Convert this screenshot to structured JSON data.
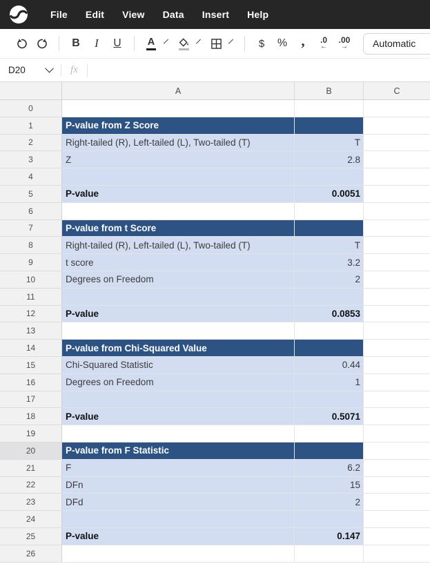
{
  "menu_bar": {
    "items": [
      "File",
      "Edit",
      "View",
      "Data",
      "Insert",
      "Help"
    ]
  },
  "toolbar": {
    "bold": "B",
    "italic": "I",
    "underline": "U",
    "text_color": "A",
    "currency": "$",
    "percent": "%",
    "comma": ",",
    "decrease_decimal": ".0",
    "decrease_arrow": "←",
    "increase_decimal": ".00",
    "increase_arrow": "→",
    "format_selector": "Automatic"
  },
  "formula_bar": {
    "cell_reference": "D20",
    "fx_label": "fx",
    "formula_value": ""
  },
  "colors": {
    "menu_bg": "#262626",
    "section_header_bg": "#2d5384",
    "section_bg": "#d3ddf1",
    "selected_row_header_bg": "#e1e1e4"
  },
  "grid": {
    "column_headers": [
      "A",
      "B",
      "C"
    ],
    "rows": [
      {
        "n": "0",
        "a": "",
        "b": "",
        "style": "plain"
      },
      {
        "n": "1",
        "a": "P-value from Z Score",
        "b": "",
        "style": "header"
      },
      {
        "n": "2",
        "a": "Right-tailed (R), Left-tailed (L), Two-tailed (T)",
        "b": "T",
        "style": "section"
      },
      {
        "n": "3",
        "a": "Z",
        "b": "2.8",
        "style": "section"
      },
      {
        "n": "4",
        "a": "",
        "b": "",
        "style": "section"
      },
      {
        "n": "5",
        "a": "P-value",
        "b": "0.0051",
        "style": "result"
      },
      {
        "n": "6",
        "a": "",
        "b": "",
        "style": "plain"
      },
      {
        "n": "7",
        "a": "P-value from t Score",
        "b": "",
        "style": "header"
      },
      {
        "n": "8",
        "a": "Right-tailed (R), Left-tailed (L), Two-tailed (T)",
        "b": "T",
        "style": "section"
      },
      {
        "n": "9",
        "a": "t score",
        "b": "3.2",
        "style": "section"
      },
      {
        "n": "10",
        "a": "Degrees on Freedom",
        "b": "2",
        "style": "section"
      },
      {
        "n": "11",
        "a": "",
        "b": "",
        "style": "section"
      },
      {
        "n": "12",
        "a": "P-value",
        "b": "0.0853",
        "style": "result"
      },
      {
        "n": "13",
        "a": "",
        "b": "",
        "style": "plain"
      },
      {
        "n": "14",
        "a": "P-value from Chi-Squared Value",
        "b": "",
        "style": "header"
      },
      {
        "n": "15",
        "a": "Chi-Squared Statistic",
        "b": "0.44",
        "style": "section"
      },
      {
        "n": "16",
        "a": "Degrees on Freedom",
        "b": "1",
        "style": "section"
      },
      {
        "n": "17",
        "a": "",
        "b": "",
        "style": "section"
      },
      {
        "n": "18",
        "a": "P-value",
        "b": "0.5071",
        "style": "result"
      },
      {
        "n": "19",
        "a": "",
        "b": "",
        "style": "plain"
      },
      {
        "n": "20",
        "a": "P-value from F Statistic",
        "b": "",
        "style": "header",
        "selected": true
      },
      {
        "n": "21",
        "a": "F",
        "b": "6.2",
        "style": "section"
      },
      {
        "n": "22",
        "a": "DFn",
        "b": "15",
        "style": "section"
      },
      {
        "n": "23",
        "a": "DFd",
        "b": "2",
        "style": "section"
      },
      {
        "n": "24",
        "a": "",
        "b": "",
        "style": "section"
      },
      {
        "n": "25",
        "a": "P-value",
        "b": "0.147",
        "style": "result"
      },
      {
        "n": "26",
        "a": "",
        "b": "",
        "style": "plain"
      }
    ]
  }
}
